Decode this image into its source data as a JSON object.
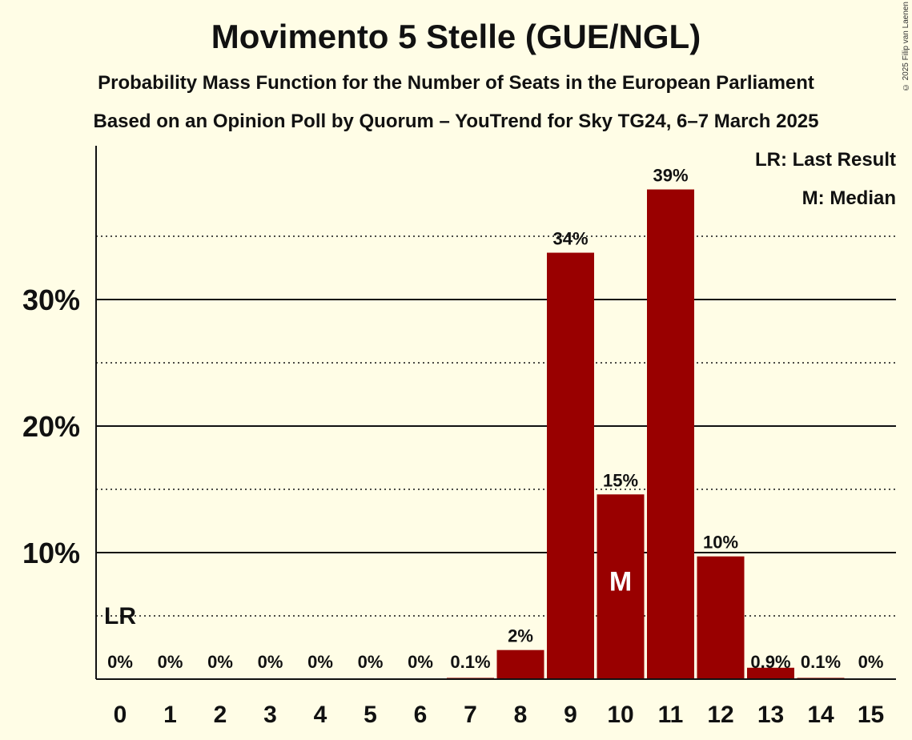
{
  "title": "Movimento 5 Stelle (GUE/NGL)",
  "subtitle1": "Probability Mass Function for the Number of Seats in the European Parliament",
  "subtitle2": "Based on an Opinion Poll by Quorum – YouTrend for Sky TG24, 6–7 March 2025",
  "copyright": "© 2025 Filip van Laenen",
  "legend": {
    "last_result": "LR: Last Result",
    "median": "M: Median"
  },
  "colors": {
    "bar": "#990000",
    "background": "#fffde6",
    "axis": "#111111"
  },
  "chart_data": {
    "type": "bar",
    "title": "Movimento 5 Stelle (GUE/NGL)",
    "xlabel": "",
    "ylabel": "",
    "categories": [
      "0",
      "1",
      "2",
      "3",
      "4",
      "5",
      "6",
      "7",
      "8",
      "9",
      "10",
      "11",
      "12",
      "13",
      "14",
      "15"
    ],
    "values": [
      0,
      0,
      0,
      0,
      0,
      0,
      0,
      0.1,
      2.3,
      33.7,
      14.6,
      38.7,
      9.7,
      0.9,
      0.1,
      0
    ],
    "labels": [
      "0%",
      "0%",
      "0%",
      "0%",
      "0%",
      "0%",
      "0%",
      "0.1%",
      "2%",
      "34%",
      "15%",
      "39%",
      "10%",
      "0.9%",
      "0.1%",
      "0%"
    ],
    "ylim": [
      0,
      42
    ],
    "yticks": [
      {
        "value": 10,
        "label": "10%"
      },
      {
        "value": 20,
        "label": "20%"
      },
      {
        "value": 30,
        "label": "30%"
      }
    ],
    "minor_gridlines": [
      5,
      15,
      25,
      35
    ],
    "median": {
      "category": "10",
      "label": "M"
    },
    "last_result": {
      "category": "0",
      "label": "LR"
    }
  }
}
